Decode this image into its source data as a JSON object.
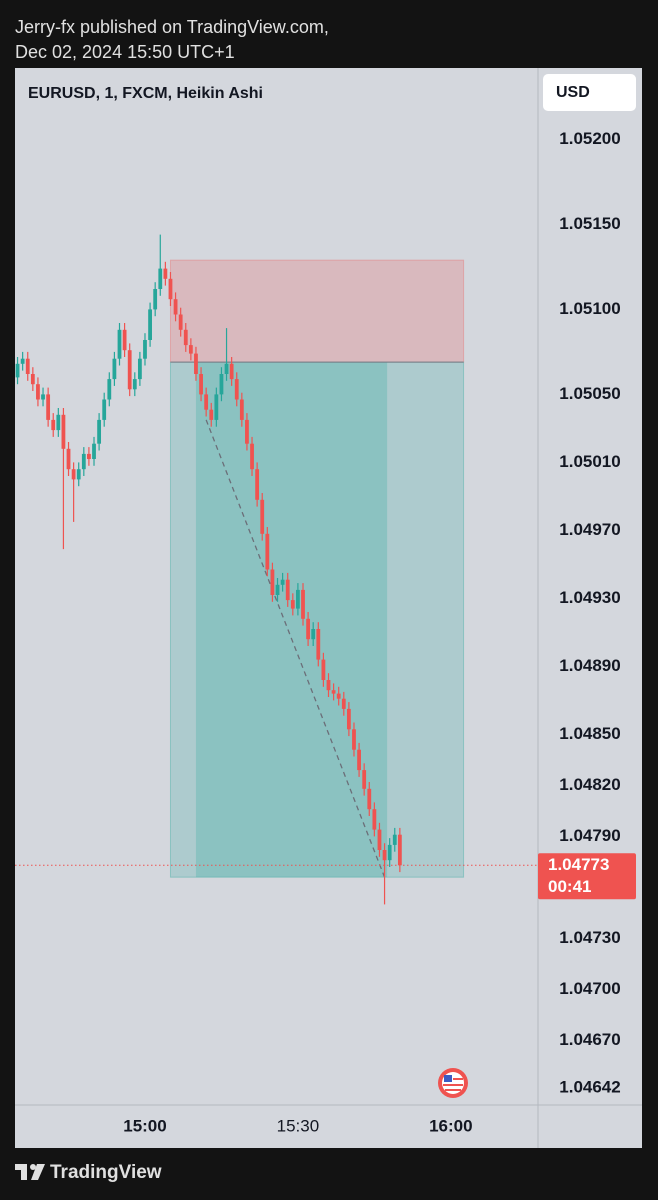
{
  "header": {
    "line1": "Jerry-fx published on TradingView.com,",
    "line2": "Dec 02, 2024 15:50 UTC+1"
  },
  "footer": {
    "brand": "TradingView"
  },
  "chart_data": {
    "type": "candlestick",
    "symbol": "EURUSD, 1, FXCM, Heikin Ashi",
    "currency": "USD",
    "up_color": "#26a69a",
    "down_color": "#ef5350",
    "xlim": [
      -25.5,
      77.1
    ],
    "xticks": [
      {
        "value": 0,
        "label": "15:00",
        "bold": true
      },
      {
        "value": 30,
        "label": "15:30",
        "bold": false
      },
      {
        "value": 60,
        "label": "16:00",
        "bold": true
      }
    ],
    "ylim": [
      1.04632,
      1.05242
    ],
    "yticks": [
      {
        "value": 1.052,
        "label": "1.05200"
      },
      {
        "value": 1.0515,
        "label": "1.05150"
      },
      {
        "value": 1.051,
        "label": "1.05100"
      },
      {
        "value": 1.0505,
        "label": "1.05050"
      },
      {
        "value": 1.0501,
        "label": "1.05010"
      },
      {
        "value": 1.0497,
        "label": "1.04970"
      },
      {
        "value": 1.0493,
        "label": "1.04930"
      },
      {
        "value": 1.0489,
        "label": "1.04890"
      },
      {
        "value": 1.0485,
        "label": "1.04850"
      },
      {
        "value": 1.0482,
        "label": "1.04820"
      },
      {
        "value": 1.0479,
        "label": "1.04790"
      },
      {
        "value": 1.0473,
        "label": "1.04730"
      },
      {
        "value": 1.047,
        "label": "1.04700"
      },
      {
        "value": 1.0467,
        "label": "1.04670"
      },
      1.04642
    ],
    "grid": false,
    "last_price": 1.04773,
    "countdown": "00:41",
    "position": {
      "start": 5,
      "end": 62.5,
      "active_start": 10,
      "active_end": 47.5,
      "stop": 1.05129,
      "entry": 1.05069,
      "target": 1.04766
    },
    "trend_line": {
      "x": [
        12,
        47
      ],
      "y": [
        1.05035,
        1.04766
      ]
    },
    "candles": {
      "x": [
        -25,
        -24,
        -23,
        -22,
        -21,
        -20,
        -19,
        -18,
        -17,
        -16,
        -15,
        -14,
        -13,
        -12,
        -11,
        -10,
        -9,
        -8,
        -7,
        -6,
        -5,
        -4,
        -3,
        -2,
        -1,
        0,
        1,
        2,
        3,
        4,
        5,
        6,
        7,
        8,
        9,
        10,
        11,
        12,
        13,
        14,
        15,
        16,
        17,
        18,
        19,
        20,
        21,
        22,
        23,
        24,
        25,
        26,
        27,
        28,
        29,
        30,
        31,
        32,
        33,
        34,
        35,
        36,
        37,
        38,
        39,
        40,
        41,
        42,
        43,
        44,
        45,
        46,
        47,
        48,
        49,
        50
      ],
      "open": [
        1.0506,
        1.05068,
        1.05071,
        1.05062,
        1.05056,
        1.05047,
        1.0505,
        1.05035,
        1.05029,
        1.05038,
        1.05018,
        1.05006,
        1.05,
        1.05006,
        1.05015,
        1.05012,
        1.05021,
        1.05035,
        1.05047,
        1.05059,
        1.05071,
        1.05088,
        1.05076,
        1.05053,
        1.05059,
        1.05071,
        1.05082,
        1.051,
        1.05112,
        1.05124,
        1.05118,
        1.05106,
        1.05097,
        1.05088,
        1.05079,
        1.05074,
        1.05062,
        1.0505,
        1.05041,
        1.05035,
        1.0505,
        1.05062,
        1.05068,
        1.05059,
        1.05047,
        1.05035,
        1.05021,
        1.05006,
        1.04988,
        1.04968,
        1.04947,
        1.04932,
        1.04938,
        1.04941,
        1.04929,
        1.04924,
        1.04935,
        1.04918,
        1.04906,
        1.04912,
        1.04894,
        1.04882,
        1.04876,
        1.04874,
        1.04871,
        1.04865,
        1.04853,
        1.04841,
        1.04829,
        1.04818,
        1.04806,
        1.04794,
        1.04782,
        1.04776,
        1.04785,
        1.04791
      ],
      "high": [
        1.05072,
        1.05075,
        1.05075,
        1.05066,
        1.0506,
        1.05054,
        1.05054,
        1.05039,
        1.05042,
        1.05042,
        1.05022,
        1.0501,
        1.0501,
        1.05019,
        1.05019,
        1.05025,
        1.05039,
        1.05051,
        1.05063,
        1.05075,
        1.05092,
        1.05092,
        1.0508,
        1.05063,
        1.05075,
        1.05086,
        1.05104,
        1.05116,
        1.05144,
        1.05128,
        1.05122,
        1.0511,
        1.05101,
        1.05092,
        1.05083,
        1.05078,
        1.05066,
        1.05054,
        1.05045,
        1.05054,
        1.05066,
        1.05089,
        1.05072,
        1.05063,
        1.05051,
        1.05039,
        1.05025,
        1.0501,
        1.04992,
        1.04972,
        1.04951,
        1.04942,
        1.04945,
        1.04945,
        1.04933,
        1.04939,
        1.04939,
        1.04922,
        1.04916,
        1.04916,
        1.04898,
        1.04886,
        1.0488,
        1.04878,
        1.04875,
        1.04869,
        1.04857,
        1.04845,
        1.04833,
        1.04822,
        1.0481,
        1.04798,
        1.04786,
        1.04789,
        1.04795,
        1.04795
      ],
      "low": [
        1.05056,
        1.05064,
        1.05058,
        1.05052,
        1.05043,
        1.05043,
        1.05031,
        1.05025,
        1.05025,
        1.04959,
        1.05002,
        1.04975,
        1.04996,
        1.05002,
        1.05008,
        1.05008,
        1.05017,
        1.05031,
        1.05043,
        1.05055,
        1.05067,
        1.05072,
        1.05049,
        1.05049,
        1.05055,
        1.05067,
        1.05078,
        1.05096,
        1.05108,
        1.05114,
        1.05102,
        1.05093,
        1.05084,
        1.05075,
        1.0507,
        1.05058,
        1.05046,
        1.05037,
        1.05031,
        1.05031,
        1.05046,
        1.05058,
        1.05055,
        1.05043,
        1.05031,
        1.05017,
        1.05002,
        1.04984,
        1.04964,
        1.04943,
        1.04928,
        1.04928,
        1.04934,
        1.04925,
        1.0492,
        1.0492,
        1.04914,
        1.04902,
        1.04902,
        1.0489,
        1.04878,
        1.04872,
        1.0487,
        1.04867,
        1.04861,
        1.04849,
        1.04837,
        1.04825,
        1.04814,
        1.04802,
        1.0479,
        1.04778,
        1.0475,
        1.04772,
        1.04781,
        1.04769
      ],
      "close": [
        1.05068,
        1.05071,
        1.05062,
        1.05056,
        1.05047,
        1.0505,
        1.05035,
        1.05029,
        1.05038,
        1.05018,
        1.05006,
        1.05,
        1.05006,
        1.05015,
        1.05012,
        1.05021,
        1.05035,
        1.05047,
        1.05059,
        1.05071,
        1.05088,
        1.05076,
        1.05053,
        1.05059,
        1.05071,
        1.05082,
        1.051,
        1.05112,
        1.05124,
        1.05118,
        1.05106,
        1.05097,
        1.05088,
        1.05079,
        1.05074,
        1.05062,
        1.0505,
        1.05041,
        1.05035,
        1.0505,
        1.05062,
        1.05068,
        1.05059,
        1.05047,
        1.05035,
        1.05021,
        1.05006,
        1.04988,
        1.04968,
        1.04947,
        1.04932,
        1.04938,
        1.04941,
        1.04929,
        1.04924,
        1.04935,
        1.04918,
        1.04906,
        1.04912,
        1.04894,
        1.04882,
        1.04876,
        1.04874,
        1.04871,
        1.04865,
        1.04853,
        1.04841,
        1.04829,
        1.04818,
        1.04806,
        1.04794,
        1.04782,
        1.04776,
        1.04785,
        1.04791,
        1.04773
      ]
    }
  }
}
